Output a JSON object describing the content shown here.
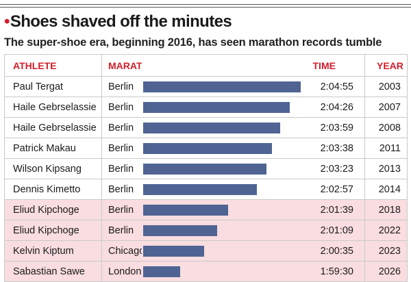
{
  "headline": {
    "title": "Shoes shaved off the minutes",
    "subtitle": "The super-shoe era, beginning 2016, has seen marathon records tumble"
  },
  "colors": {
    "accent": "#d21d2a",
    "bar": "#4f6493",
    "highlight_row": "#f9dde1"
  },
  "chart_data": {
    "type": "table",
    "columns": [
      "ATHLETE",
      "MARATHON",
      "TIME",
      "YEAR"
    ],
    "bar_metric": "TIME",
    "highlight_from_year": 2016,
    "rows": [
      {
        "athlete": "Paul Tergat",
        "marathon": "Berlin",
        "time": "2:04:55",
        "year": "2003",
        "seconds": 7495,
        "super_shoe": false
      },
      {
        "athlete": "Haile Gebrselassie",
        "marathon": "Berlin",
        "time": "2:04:26",
        "year": "2007",
        "seconds": 7466,
        "super_shoe": false
      },
      {
        "athlete": "Haile Gebrselassie",
        "marathon": "Berlin",
        "time": "2:03:59",
        "year": "2008",
        "seconds": 7439,
        "super_shoe": false
      },
      {
        "athlete": "Patrick Makau",
        "marathon": "Berlin",
        "time": "2:03:38",
        "year": "2011",
        "seconds": 7418,
        "super_shoe": false
      },
      {
        "athlete": "Wilson Kipsang",
        "marathon": "Berlin",
        "time": "2:03:23",
        "year": "2013",
        "seconds": 7403,
        "super_shoe": false
      },
      {
        "athlete": "Dennis Kimetto",
        "marathon": "Berlin",
        "time": "2:02:57",
        "year": "2014",
        "seconds": 7377,
        "super_shoe": false
      },
      {
        "athlete": "Eliud Kipchoge",
        "marathon": "Berlin",
        "time": "2:01:39",
        "year": "2018",
        "seconds": 7299,
        "super_shoe": true
      },
      {
        "athlete": "Eliud Kipchoge",
        "marathon": "Berlin",
        "time": "2:01:09",
        "year": "2022",
        "seconds": 7269,
        "super_shoe": true
      },
      {
        "athlete": "Kelvin Kiptum",
        "marathon": "Chicago",
        "time": "2:00:35",
        "year": "2023",
        "seconds": 7235,
        "super_shoe": true
      },
      {
        "athlete": "Sabastian Sawe",
        "marathon": "London",
        "time": "1:59:30",
        "year": "2026",
        "seconds": 7170,
        "super_shoe": true
      }
    ]
  }
}
